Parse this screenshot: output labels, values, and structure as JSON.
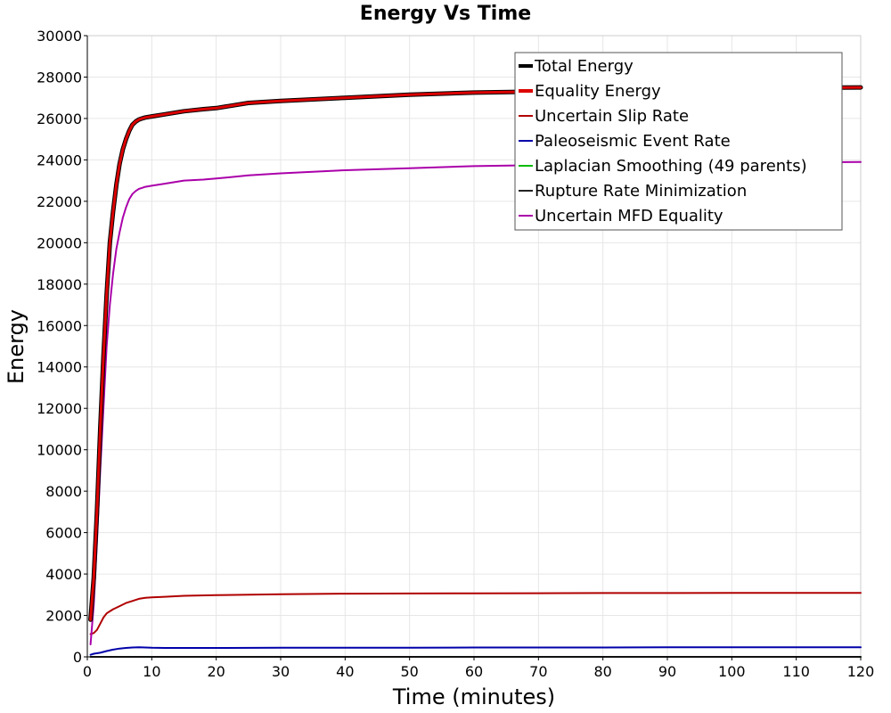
{
  "chart_data": {
    "type": "line",
    "title": "Energy Vs Time",
    "xlabel": "Time (minutes)",
    "ylabel": "Energy",
    "xlim": [
      0,
      120
    ],
    "ylim": [
      0,
      30000
    ],
    "xticks": [
      0,
      10,
      20,
      30,
      40,
      50,
      60,
      70,
      80,
      90,
      100,
      110,
      120
    ],
    "yticks": [
      0,
      2000,
      4000,
      6000,
      8000,
      10000,
      12000,
      14000,
      16000,
      18000,
      20000,
      22000,
      24000,
      26000,
      28000,
      30000
    ],
    "grid": true,
    "legend_position": "top-right",
    "series": [
      {
        "name": "Total Energy",
        "color": "#000000",
        "x": [
          0.5,
          1,
          1.5,
          2,
          2.5,
          3,
          3.5,
          4,
          4.5,
          5,
          5.5,
          6,
          6.5,
          7,
          7.5,
          8,
          8.5,
          9,
          10,
          12,
          15,
          18,
          20,
          25,
          30,
          40,
          50,
          60,
          70,
          80,
          90,
          100,
          110,
          120
        ],
        "y": [
          1800,
          3800,
          7000,
          11000,
          14500,
          17500,
          20000,
          21500,
          22800,
          23800,
          24500,
          25000,
          25400,
          25700,
          25850,
          25950,
          26000,
          26050,
          26100,
          26200,
          26350,
          26450,
          26500,
          26750,
          26850,
          27000,
          27150,
          27250,
          27300,
          27380,
          27420,
          27450,
          27480,
          27500
        ]
      },
      {
        "name": "Equality Energy",
        "color": "#dd0000",
        "x": [
          0.5,
          1,
          1.5,
          2,
          2.5,
          3,
          3.5,
          4,
          4.5,
          5,
          5.5,
          6,
          6.5,
          7,
          7.5,
          8,
          8.5,
          9,
          10,
          12,
          15,
          18,
          20,
          25,
          30,
          40,
          50,
          60,
          70,
          80,
          90,
          100,
          110,
          120
        ],
        "y": [
          1800,
          3800,
          7000,
          11000,
          14500,
          17500,
          20000,
          21500,
          22800,
          23800,
          24500,
          25000,
          25400,
          25700,
          25850,
          25950,
          26000,
          26050,
          26100,
          26200,
          26350,
          26450,
          26500,
          26750,
          26850,
          27000,
          27150,
          27250,
          27300,
          27380,
          27420,
          27450,
          27480,
          27500
        ]
      },
      {
        "name": "Uncertain Slip Rate",
        "color": "#b00000",
        "x": [
          0.5,
          1,
          1.5,
          2,
          2.5,
          3,
          3.5,
          4,
          5,
          6,
          7,
          8,
          9,
          10,
          12,
          15,
          20,
          30,
          40,
          50,
          60,
          70,
          80,
          90,
          100,
          110,
          120
        ],
        "y": [
          1100,
          1150,
          1300,
          1600,
          1900,
          2100,
          2200,
          2300,
          2450,
          2600,
          2700,
          2800,
          2850,
          2870,
          2900,
          2950,
          2980,
          3020,
          3050,
          3060,
          3070,
          3075,
          3080,
          3080,
          3085,
          3090,
          3090
        ]
      },
      {
        "name": "Paleoseismic Event Rate",
        "color": "#0000aa",
        "x": [
          0.5,
          1,
          2,
          3,
          4,
          5,
          6,
          7,
          8,
          9,
          10,
          12,
          15,
          20,
          30,
          40,
          50,
          60,
          70,
          80,
          90,
          100,
          110,
          120
        ],
        "y": [
          100,
          150,
          200,
          280,
          350,
          400,
          430,
          450,
          460,
          450,
          440,
          430,
          430,
          430,
          440,
          440,
          440,
          450,
          450,
          450,
          460,
          460,
          460,
          460
        ]
      },
      {
        "name": "Laplacian Smoothing (49 parents)",
        "color": "#00bb00",
        "x": [
          0.5,
          120
        ],
        "y": [
          0,
          0
        ]
      },
      {
        "name": "Rupture Rate Minimization",
        "color": "#222222",
        "x": [
          0.5,
          120
        ],
        "y": [
          0,
          0
        ]
      },
      {
        "name": "Uncertain MFD Equality",
        "color": "#aa00aa",
        "x": [
          0.5,
          1,
          1.5,
          2,
          2.5,
          3,
          3.5,
          4,
          4.5,
          5,
          5.5,
          6,
          6.5,
          7,
          7.5,
          8,
          8.5,
          9,
          10,
          12,
          15,
          18,
          20,
          25,
          30,
          40,
          50,
          60,
          70,
          80,
          90,
          100,
          110,
          120
        ],
        "y": [
          600,
          2500,
          5500,
          9000,
          12000,
          15000,
          17000,
          18500,
          19700,
          20500,
          21200,
          21700,
          22100,
          22350,
          22500,
          22600,
          22650,
          22700,
          22750,
          22850,
          23000,
          23050,
          23100,
          23250,
          23350,
          23500,
          23600,
          23700,
          23750,
          23800,
          23820,
          23850,
          23880,
          23900
        ]
      }
    ],
    "legend": [
      {
        "label": "Total Energy",
        "color": "#000000",
        "thick": true
      },
      {
        "label": "Equality Energy",
        "color": "#dd0000",
        "thick": true
      },
      {
        "label": "Uncertain Slip Rate",
        "color": "#b00000",
        "thick": false
      },
      {
        "label": "Paleoseismic Event Rate",
        "color": "#0000aa",
        "thick": false
      },
      {
        "label": "Laplacian Smoothing (49 parents)",
        "color": "#00bb00",
        "thick": false
      },
      {
        "label": "Rupture Rate Minimization",
        "color": "#222222",
        "thick": false
      },
      {
        "label": "Uncertain MFD Equality",
        "color": "#aa00aa",
        "thick": false
      }
    ]
  }
}
